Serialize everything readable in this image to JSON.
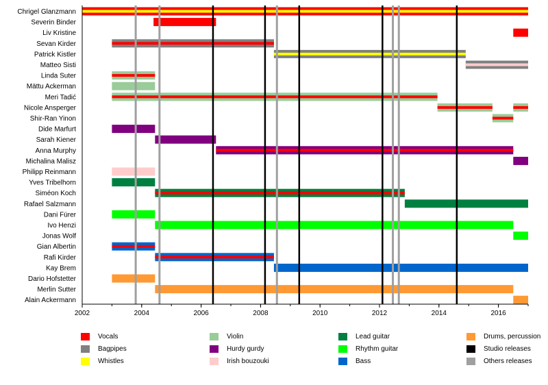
{
  "chart_data": {
    "type": "timeline",
    "x_axis": {
      "min": 2002,
      "max": 2017,
      "ticks": [
        2002,
        2004,
        2006,
        2008,
        2010,
        2012,
        2014,
        2016
      ]
    },
    "colors": {
      "vocals": "#ff0000",
      "bagpipes": "#808080",
      "whistles": "#ffff00",
      "violin": "#99cc99",
      "hurdy_gurdy": "#800080",
      "irish_bouzouki": "#ffcccc",
      "lead_guitar": "#008040",
      "rhythm_guitar": "#00ff00",
      "bass": "#0066cc",
      "drums": "#ff9933",
      "studio": "#000000",
      "others": "#a0a0a0"
    },
    "legend": [
      {
        "key": "vocals",
        "label": "Vocals"
      },
      {
        "key": "bagpipes",
        "label": "Bagpipes"
      },
      {
        "key": "whistles",
        "label": "Whistles"
      },
      {
        "key": "violin",
        "label": "Violin"
      },
      {
        "key": "hurdy_gurdy",
        "label": "Hurdy gurdy"
      },
      {
        "key": "irish_bouzouki",
        "label": "Irish bouzouki"
      },
      {
        "key": "lead_guitar",
        "label": "Lead guitar"
      },
      {
        "key": "rhythm_guitar",
        "label": "Rhythm guitar"
      },
      {
        "key": "bass",
        "label": "Bass"
      },
      {
        "key": "drums",
        "label": "Drums, percussion"
      },
      {
        "key": "studio",
        "label": "Studio releases"
      },
      {
        "key": "others",
        "label": "Others releases"
      }
    ],
    "studio_releases": [
      2006.4,
      2008.15,
      2009.3,
      2012.1,
      2014.6
    ],
    "other_releases": [
      2003.8,
      2004.6,
      2008.55,
      2012.45,
      2012.65
    ],
    "members": [
      {
        "name": "Chrigel Glanzmann",
        "bars": [
          {
            "start": 2002,
            "end": 2017,
            "main": "vocals",
            "stripe": "whistles"
          }
        ]
      },
      {
        "name": "Severin Binder",
        "bars": [
          {
            "start": 2004.4,
            "end": 2006.5,
            "main": "vocals"
          }
        ]
      },
      {
        "name": "Liv Kristine",
        "bars": [
          {
            "start": 2016.5,
            "end": 2017,
            "main": "vocals"
          }
        ]
      },
      {
        "name": "Sevan Kirder",
        "bars": [
          {
            "start": 2003,
            "end": 2008.45,
            "main": "bagpipes",
            "stripe": "vocals"
          }
        ]
      },
      {
        "name": "Patrick Kistler",
        "bars": [
          {
            "start": 2008.45,
            "end": 2014.9,
            "main": "bagpipes",
            "stripe": "whistles"
          }
        ]
      },
      {
        "name": "Matteo Sisti",
        "bars": [
          {
            "start": 2014.9,
            "end": 2017,
            "main": "bagpipes",
            "stripe": "irish_bouzouki"
          }
        ]
      },
      {
        "name": "Linda Suter",
        "bars": [
          {
            "start": 2003,
            "end": 2004.45,
            "main": "violin",
            "stripe": "vocals"
          }
        ]
      },
      {
        "name": "Mättu Ackerman",
        "bars": [
          {
            "start": 2003,
            "end": 2004.45,
            "main": "violin"
          }
        ]
      },
      {
        "name": "Meri Tadić",
        "bars": [
          {
            "start": 2003,
            "end": 2013.95,
            "main": "violin",
            "stripe": "vocals"
          }
        ]
      },
      {
        "name": "Nicole Ansperger",
        "bars": [
          {
            "start": 2013.95,
            "end": 2015.8,
            "main": "violin",
            "stripe": "vocals"
          },
          {
            "start": 2016.5,
            "end": 2017,
            "main": "violin",
            "stripe": "vocals"
          }
        ]
      },
      {
        "name": "Shir-Ran Yinon",
        "bars": [
          {
            "start": 2015.8,
            "end": 2016.5,
            "main": "violin",
            "stripe": "vocals"
          }
        ]
      },
      {
        "name": "Dide Marfurt",
        "bars": [
          {
            "start": 2003,
            "end": 2004.45,
            "main": "hurdy_gurdy"
          }
        ]
      },
      {
        "name": "Sarah Kiener",
        "bars": [
          {
            "start": 2004.45,
            "end": 2006.5,
            "main": "hurdy_gurdy"
          }
        ]
      },
      {
        "name": "Anna Murphy",
        "bars": [
          {
            "start": 2006.5,
            "end": 2016.5,
            "main": "hurdy_gurdy",
            "stripe": "vocals"
          }
        ]
      },
      {
        "name": "Michalina Malisz",
        "bars": [
          {
            "start": 2016.5,
            "end": 2017,
            "main": "hurdy_gurdy"
          }
        ]
      },
      {
        "name": "Philipp Reinmann",
        "bars": [
          {
            "start": 2003,
            "end": 2004.45,
            "main": "irish_bouzouki"
          }
        ]
      },
      {
        "name": "Yves Tribelhorn",
        "bars": [
          {
            "start": 2003,
            "end": 2004.45,
            "main": "lead_guitar"
          }
        ]
      },
      {
        "name": "Siméon Koch",
        "bars": [
          {
            "start": 2004.45,
            "end": 2012.85,
            "main": "lead_guitar",
            "stripe": "vocals"
          }
        ]
      },
      {
        "name": "Rafael Salzmann",
        "bars": [
          {
            "start": 2012.85,
            "end": 2017,
            "main": "lead_guitar"
          }
        ]
      },
      {
        "name": "Dani Fürer",
        "bars": [
          {
            "start": 2003,
            "end": 2004.45,
            "main": "rhythm_guitar"
          }
        ]
      },
      {
        "name": "Ivo Henzi",
        "bars": [
          {
            "start": 2004.45,
            "end": 2016.5,
            "main": "rhythm_guitar"
          }
        ]
      },
      {
        "name": "Jonas Wolf",
        "bars": [
          {
            "start": 2016.5,
            "end": 2017,
            "main": "rhythm_guitar"
          }
        ]
      },
      {
        "name": "Gian Albertin",
        "bars": [
          {
            "start": 2003,
            "end": 2004.45,
            "main": "bass",
            "stripe": "vocals"
          }
        ]
      },
      {
        "name": "Rafi Kirder",
        "bars": [
          {
            "start": 2004.45,
            "end": 2008.45,
            "main": "bass",
            "stripe": "vocals"
          }
        ]
      },
      {
        "name": "Kay Brem",
        "bars": [
          {
            "start": 2008.45,
            "end": 2017,
            "main": "bass"
          }
        ]
      },
      {
        "name": "Dario Hofstetter",
        "bars": [
          {
            "start": 2003,
            "end": 2004.45,
            "main": "drums"
          }
        ]
      },
      {
        "name": "Merlin Sutter",
        "bars": [
          {
            "start": 2004.45,
            "end": 2016.5,
            "main": "drums"
          }
        ]
      },
      {
        "name": "Alain Ackermann",
        "bars": [
          {
            "start": 2016.5,
            "end": 2017,
            "main": "drums"
          }
        ]
      }
    ]
  }
}
